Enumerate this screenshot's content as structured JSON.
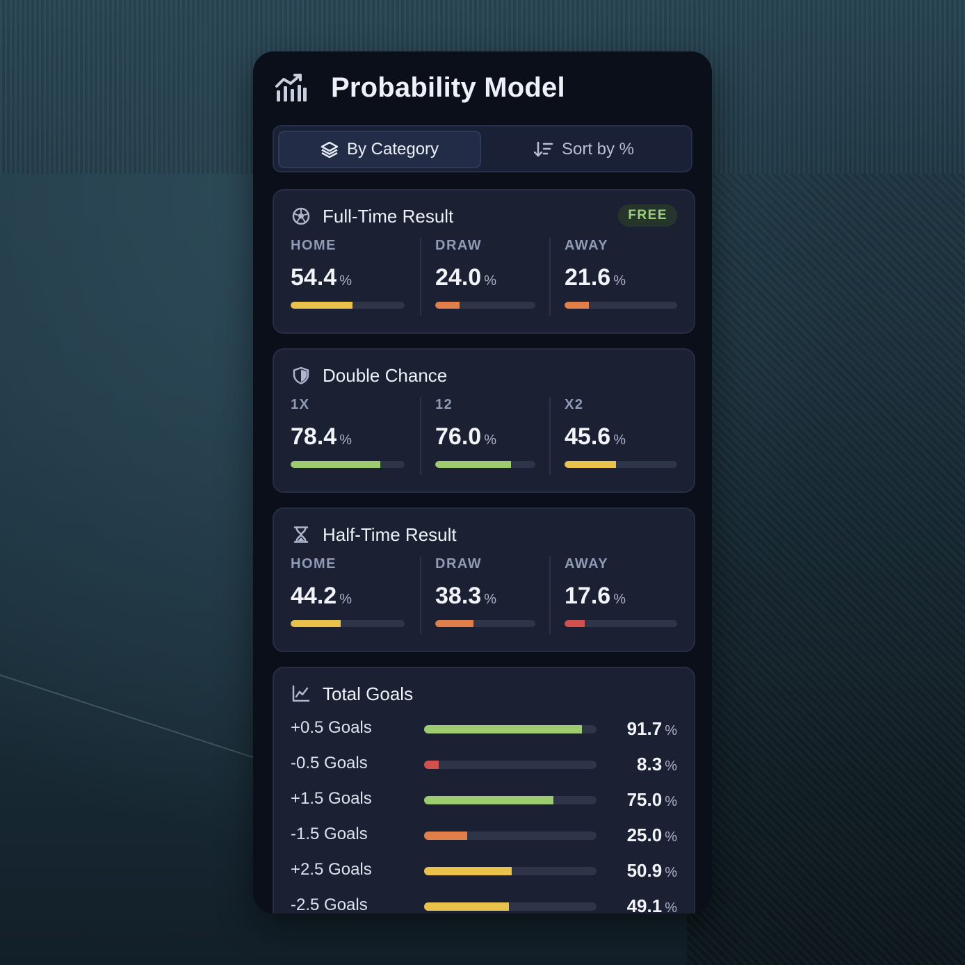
{
  "header": {
    "title": "Probability Model",
    "icon": "bar-chart-trend-icon"
  },
  "toggle": {
    "by_category": "By Category",
    "sort_by": "Sort by %"
  },
  "colors": {
    "green": "#9dcc6e",
    "yellow": "#e8c24a",
    "orange": "#e07f4a",
    "red": "#d2504d"
  },
  "sections": {
    "full_time": {
      "title": "Full-Time Result",
      "badge": "FREE",
      "items": [
        {
          "label": "HOME",
          "value": "54.4",
          "pct": 54.4,
          "color": "#e8c24a"
        },
        {
          "label": "DRAW",
          "value": "24.0",
          "pct": 24.0,
          "color": "#e07f4a"
        },
        {
          "label": "AWAY",
          "value": "21.6",
          "pct": 21.6,
          "color": "#e07f4a"
        }
      ]
    },
    "double_chance": {
      "title": "Double Chance",
      "items": [
        {
          "label": "1X",
          "value": "78.4",
          "pct": 78.4,
          "color": "#9dcc6e"
        },
        {
          "label": "12",
          "value": "76.0",
          "pct": 76.0,
          "color": "#9dcc6e"
        },
        {
          "label": "X2",
          "value": "45.6",
          "pct": 45.6,
          "color": "#e8c24a"
        }
      ]
    },
    "half_time": {
      "title": "Half-Time Result",
      "items": [
        {
          "label": "HOME",
          "value": "44.2",
          "pct": 44.2,
          "color": "#e8c24a"
        },
        {
          "label": "DRAW",
          "value": "38.3",
          "pct": 38.3,
          "color": "#e07f4a"
        },
        {
          "label": "AWAY",
          "value": "17.6",
          "pct": 17.6,
          "color": "#d2504d"
        }
      ]
    },
    "total_goals": {
      "title": "Total Goals",
      "rows": [
        {
          "label": "+0.5 Goals",
          "value": "91.7",
          "pct": 91.7,
          "color": "#9dcc6e"
        },
        {
          "label": "-0.5 Goals",
          "value": "8.3",
          "pct": 8.3,
          "color": "#d2504d"
        },
        {
          "label": "+1.5 Goals",
          "value": "75.0",
          "pct": 75.0,
          "color": "#9dcc6e"
        },
        {
          "label": "-1.5 Goals",
          "value": "25.0",
          "pct": 25.0,
          "color": "#e07f4a"
        },
        {
          "label": "+2.5 Goals",
          "value": "50.9",
          "pct": 50.9,
          "color": "#e8c24a"
        },
        {
          "label": "-2.5 Goals",
          "value": "49.1",
          "pct": 49.1,
          "color": "#e8c24a"
        }
      ]
    }
  },
  "pct_symbol": "%"
}
